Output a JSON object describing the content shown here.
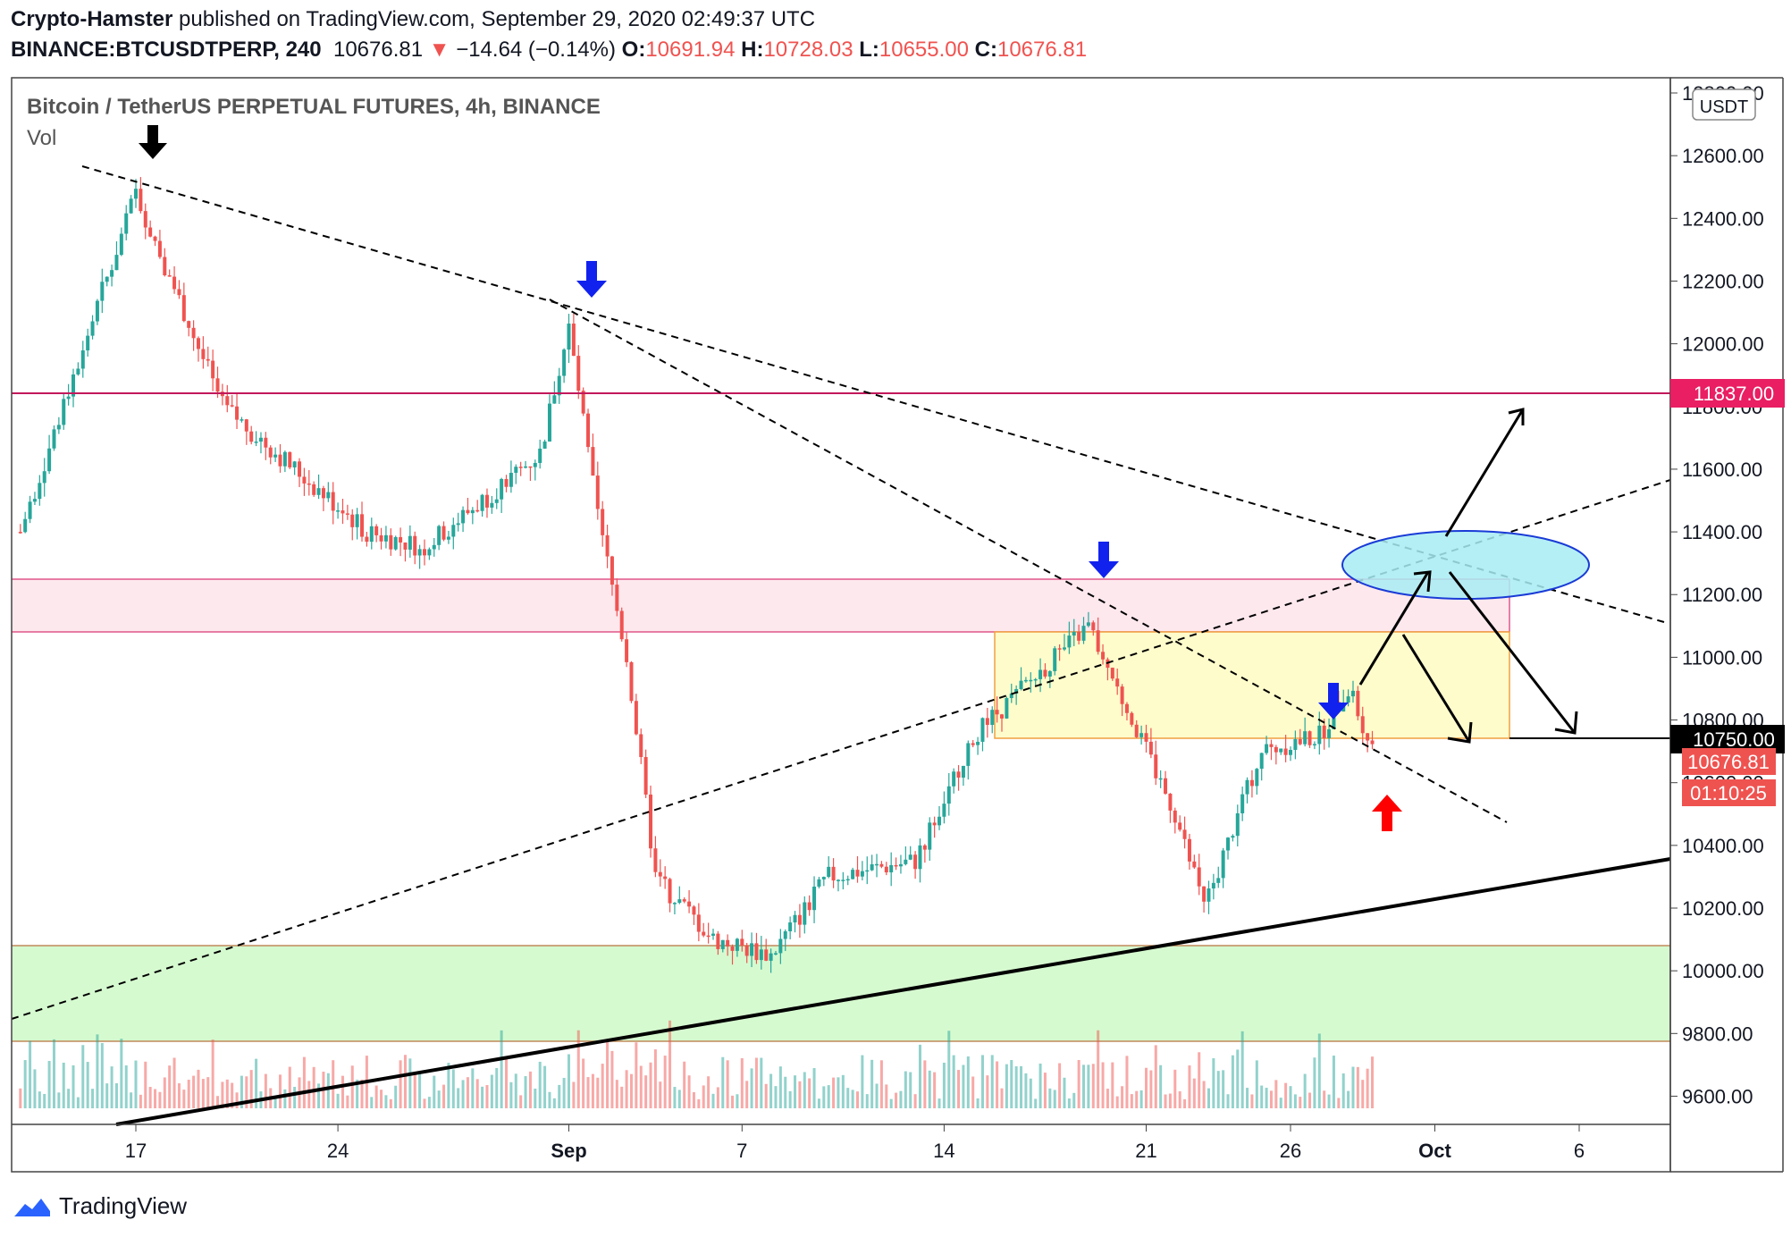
{
  "header": {
    "author": "Crypto-Hamster",
    "published_text": " published on TradingView.com, September 29, 2020 02:49:37 UTC",
    "symbol": "BINANCE:BTCUSDTPERP, 240",
    "last": "10676.81",
    "change": "−14.64 (−0.14%)",
    "o_label": "O:",
    "o": "10691.94",
    "h_label": "H:",
    "h": "10728.03",
    "l_label": "L:",
    "l": "10655.00",
    "c_label": "C:",
    "c": "10676.81"
  },
  "pane": {
    "title": "Bitcoin / TetherUS PERPETUAL FUTURES, 4h, BINANCE",
    "indicator": "Vol",
    "currency_button": "USDT"
  },
  "tags": {
    "level_1": "11837.00",
    "level_2": "10750.00",
    "last_price": "10676.81",
    "countdown": "01:10:25"
  },
  "footer": {
    "brand": "TradingView"
  },
  "colors": {
    "up": "#26a69a",
    "down": "#ef5350",
    "resistance_zone": "#fde8ee",
    "resistance_line": "#c2185b",
    "range_zone": "#fffccc",
    "support_zone": "#d6fad0",
    "target_ellipse": "#a8ecf4",
    "arrow_blue": "#1122ee",
    "arrow_red": "#ff0000"
  },
  "chart_data": {
    "type": "candlestick",
    "ylim": [
      9550,
      12820
    ],
    "y_ticks": [
      "12800.00",
      "12600.00",
      "12400.00",
      "12200.00",
      "12000.00",
      "11800.00",
      "11600.00",
      "11400.00",
      "11200.00",
      "11000.00",
      "10800.00",
      "10600.00",
      "10400.00",
      "10200.00",
      "10000.00",
      "9800.00",
      "9600.00"
    ],
    "x_ticks": [
      "17",
      "24",
      "Sep",
      "7",
      "14",
      "21",
      "26",
      "Oct",
      "6"
    ],
    "key_points": [
      {
        "date": "2020-08-13",
        "close": 11400
      },
      {
        "date": "2020-08-17",
        "close": 12480
      },
      {
        "date": "2020-08-20",
        "close": 11800
      },
      {
        "date": "2020-08-25",
        "close": 11400
      },
      {
        "date": "2020-08-27",
        "close": 11350
      },
      {
        "date": "2020-08-31",
        "close": 11650
      },
      {
        "date": "2020-09-01",
        "close": 12050
      },
      {
        "date": "2020-09-02",
        "close": 11450
      },
      {
        "date": "2020-09-03",
        "close": 11000
      },
      {
        "date": "2020-09-04",
        "close": 10300
      },
      {
        "date": "2020-09-05",
        "close": 10200
      },
      {
        "date": "2020-09-06",
        "close": 10100
      },
      {
        "date": "2020-09-08",
        "close": 10050
      },
      {
        "date": "2020-09-10",
        "close": 10300
      },
      {
        "date": "2020-09-13",
        "close": 10350
      },
      {
        "date": "2020-09-15",
        "close": 10750
      },
      {
        "date": "2020-09-19",
        "close": 11100
      },
      {
        "date": "2020-09-21",
        "close": 10700
      },
      {
        "date": "2020-09-22",
        "close": 10500
      },
      {
        "date": "2020-09-23",
        "close": 10200
      },
      {
        "date": "2020-09-25",
        "close": 10700
      },
      {
        "date": "2020-09-27",
        "close": 10750
      },
      {
        "date": "2020-09-28",
        "close": 10900
      },
      {
        "date": "2020-09-29",
        "close": 10676.81
      }
    ],
    "zones": [
      {
        "name": "resistance",
        "from": 11090,
        "to": 11260
      },
      {
        "name": "range",
        "from": 10750,
        "to": 11090
      },
      {
        "name": "support",
        "from": 9800,
        "to": 10100
      }
    ],
    "horizontal_levels": [
      11837,
      10750
    ]
  }
}
